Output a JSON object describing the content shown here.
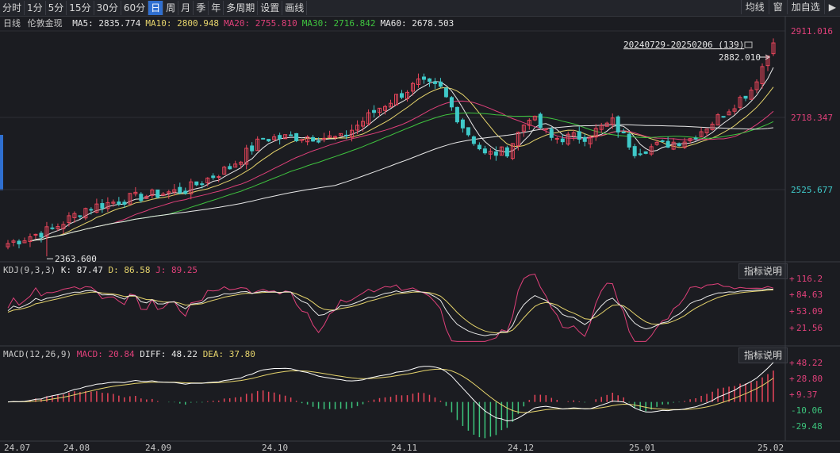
{
  "toolbar": {
    "periods": [
      "分时",
      "1分",
      "5分",
      "15分",
      "30分",
      "60分",
      "日",
      "周",
      "月",
      "季",
      "年",
      "多周期",
      "设置",
      "画线"
    ],
    "active": "日",
    "right": [
      "均线",
      "窗",
      "加自选"
    ]
  },
  "main": {
    "period_label": "日线",
    "symbol": "伦敦金现",
    "ma": [
      {
        "label": "MA5: 2835.774",
        "color": "#e8e8e8"
      },
      {
        "label": "MA10: 2800.948",
        "color": "#e6d46c"
      },
      {
        "label": "MA20: 2755.810",
        "color": "#e0407a"
      },
      {
        "label": "MA30: 2716.842",
        "color": "#3fc33f"
      },
      {
        "label": "MA60: 2678.503",
        "color": "#e8e8e8"
      }
    ],
    "range_label": "20240729-20250206 (139)",
    "last_price_label": "2882.010",
    "low_label": "2363.600",
    "y_ticks": [
      "2911.016",
      "2718.347",
      "2525.677"
    ]
  },
  "kdj": {
    "title": "KDJ(9,3,3)",
    "k_label": "K: 87.47",
    "d_label": "D: 86.58",
    "j_label": "J: 89.25",
    "button": "指标说明",
    "y_ticks": [
      "116.2",
      "84.63",
      "53.09",
      "21.56"
    ]
  },
  "macd": {
    "title": "MACD(12,26,9)",
    "macd_label": "MACD: 20.84",
    "diff_label": "DIFF: 48.22",
    "dea_label": "DEA: 37.80",
    "button": "指标说明",
    "y_ticks": [
      "48.22",
      "28.80",
      "9.37",
      "-10.06",
      "-29.48"
    ]
  },
  "x_axis": [
    "24.07",
    "24.08",
    "24.09",
    "24.10",
    "24.11",
    "24.12",
    "25.01",
    "25.02"
  ],
  "colors": {
    "up": "#e8455a",
    "down": "#3fc9c9",
    "k": "#e8e8e8",
    "d": "#e6d46c",
    "j": "#e0407a",
    "dea": "#e6d46c",
    "diff": "#ffffff",
    "bg": "#1b1c21"
  },
  "chart_data": {
    "type": "candlestick",
    "instrument": "伦敦金现",
    "period": "日线",
    "price_ticks": [
      2911.016,
      2718.347,
      2525.677
    ],
    "price_low": 2363.6,
    "price_last": 2882.01,
    "anchors": [
      {
        "x": 0,
        "close": 2395
      },
      {
        "x": 8,
        "close": 2430
      },
      {
        "x": 14,
        "close": 2480
      },
      {
        "x": 22,
        "close": 2505
      },
      {
        "x": 32,
        "close": 2525
      },
      {
        "x": 40,
        "close": 2580
      },
      {
        "x": 46,
        "close": 2650
      },
      {
        "x": 54,
        "close": 2655
      },
      {
        "x": 60,
        "close": 2650
      },
      {
        "x": 67,
        "close": 2725
      },
      {
        "x": 74,
        "close": 2785
      },
      {
        "x": 78,
        "close": 2770
      },
      {
        "x": 82,
        "close": 2680
      },
      {
        "x": 86,
        "close": 2610
      },
      {
        "x": 90,
        "close": 2620
      },
      {
        "x": 94,
        "close": 2705
      },
      {
        "x": 98,
        "close": 2650
      },
      {
        "x": 104,
        "close": 2655
      },
      {
        "x": 109,
        "close": 2690
      },
      {
        "x": 113,
        "close": 2620
      },
      {
        "x": 118,
        "close": 2635
      },
      {
        "x": 123,
        "close": 2650
      },
      {
        "x": 128,
        "close": 2700
      },
      {
        "x": 134,
        "close": 2770
      },
      {
        "x": 138,
        "close": 2880
      }
    ],
    "ma_last": {
      "MA5": 2835.774,
      "MA10": 2800.948,
      "MA20": 2755.81,
      "MA30": 2716.842,
      "MA60": 2678.503
    },
    "kdj_ticks": [
      116.2,
      84.63,
      53.09,
      21.56
    ],
    "kdj_last": {
      "K": 87.47,
      "D": 86.58,
      "J": 89.25
    },
    "macd_ticks": [
      48.22,
      28.8,
      9.37,
      -10.06,
      -29.48
    ],
    "macd_last": {
      "MACD": 20.84,
      "DIFF": 48.22,
      "DEA": 37.8
    }
  }
}
